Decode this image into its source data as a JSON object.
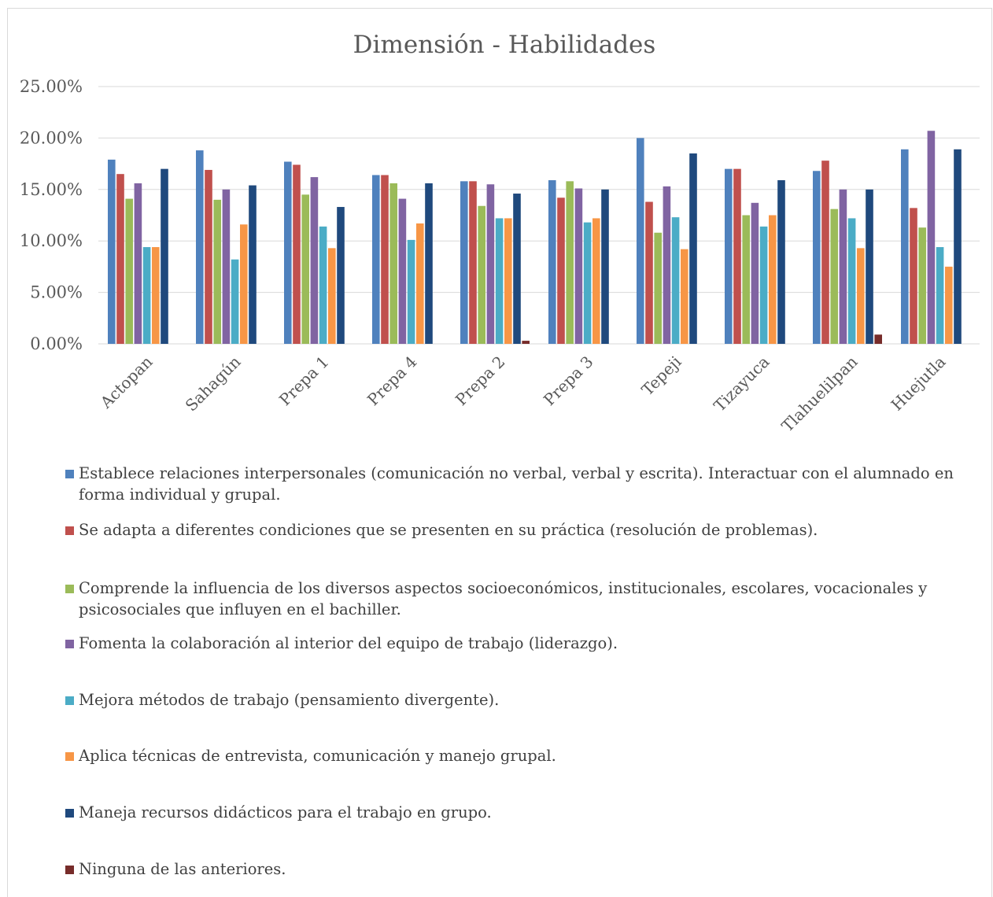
{
  "chart_data": {
    "type": "bar",
    "title": "Dimensión - Habilidades",
    "xlabel": "",
    "ylabel": "",
    "ylim": [
      0,
      25
    ],
    "y_ticks": [
      "0.00%",
      "5.00%",
      "10.00%",
      "15.00%",
      "20.00%",
      "25.00%"
    ],
    "y_tick_values": [
      0,
      5,
      10,
      15,
      20,
      25
    ],
    "grid": true,
    "legend_position": "bottom",
    "categories": [
      "Actopan",
      "Sahagún",
      "Prepa 1",
      "Prepa 4",
      "Prepa 2",
      "Prepa 3",
      "Tepeji",
      "Tizayuca",
      "Tlahuelilpan",
      "Huejutla"
    ],
    "series": [
      {
        "name": "Establece relaciones interpersonales (comunicación no verbal, verbal y escrita). Interactuar con el alumnado en forma individual y grupal.",
        "color": "#4f81bd",
        "values": [
          17.9,
          18.8,
          17.7,
          16.4,
          15.8,
          15.9,
          20.0,
          17.0,
          16.8,
          18.9
        ]
      },
      {
        "name": "Se adapta a diferentes condiciones que se presenten en su práctica (resolución de problemas).",
        "color": "#c0504d",
        "values": [
          16.5,
          16.9,
          17.4,
          16.4,
          15.8,
          14.2,
          13.8,
          17.0,
          17.8,
          13.2
        ]
      },
      {
        "name": "Comprende la influencia de los diversos aspectos socioeconómicos, institucionales, escolares, vocacionales y psicosociales que influyen en el bachiller.",
        "color": "#9bbb59",
        "values": [
          14.1,
          14.0,
          14.5,
          15.6,
          13.4,
          15.8,
          10.8,
          12.5,
          13.1,
          11.3
        ]
      },
      {
        "name": "Fomenta la colaboración al interior del equipo de trabajo (liderazgo).",
        "color": "#8064a2",
        "values": [
          15.6,
          15.0,
          16.2,
          14.1,
          15.5,
          15.1,
          15.3,
          13.7,
          15.0,
          20.7
        ]
      },
      {
        "name": "Mejora métodos de trabajo (pensamiento divergente).",
        "color": "#4bacc6",
        "values": [
          9.4,
          8.2,
          11.4,
          10.1,
          12.2,
          11.8,
          12.3,
          11.4,
          12.2,
          9.4
        ]
      },
      {
        "name": "Aplica técnicas de entrevista, comunicación y manejo grupal.",
        "color": "#f79646",
        "values": [
          9.4,
          11.6,
          9.3,
          11.7,
          12.2,
          12.2,
          9.2,
          12.5,
          9.3,
          7.5
        ]
      },
      {
        "name": "Maneja recursos didácticos para el trabajo en grupo.",
        "color": "#1f497d",
        "values": [
          17.0,
          15.4,
          13.3,
          15.6,
          14.6,
          15.0,
          18.5,
          15.9,
          15.0,
          18.9
        ]
      },
      {
        "name": "Ninguna de las anteriores.",
        "color": "#772c2a",
        "values": [
          0,
          0,
          0,
          0,
          0.3,
          0,
          0,
          0,
          0.9,
          0
        ]
      }
    ]
  }
}
